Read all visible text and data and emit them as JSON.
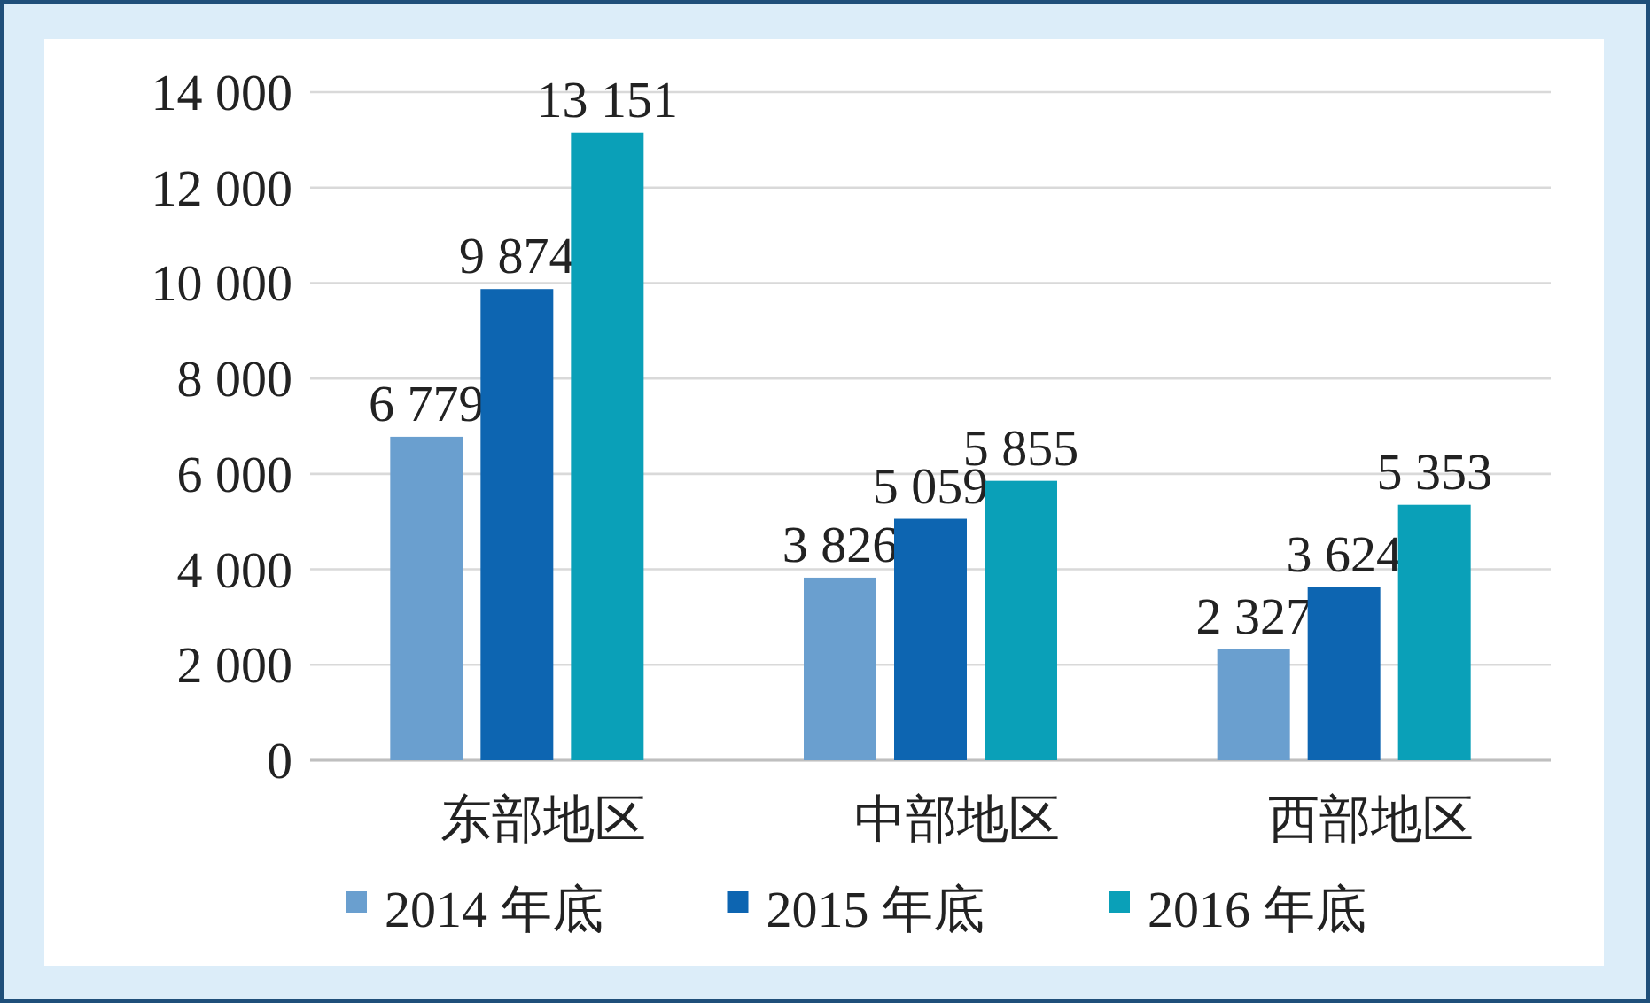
{
  "chart_data": {
    "type": "bar",
    "categories": [
      "东部地区",
      "中部地区",
      "西部地区"
    ],
    "series": [
      {
        "name": "2014 年底",
        "color": "#6a9fcf",
        "values": [
          6779,
          3826,
          2327
        ],
        "value_labels": [
          "6 779",
          "3 826",
          "2 327"
        ]
      },
      {
        "name": "2015 年底",
        "color": "#0d65b1",
        "values": [
          9874,
          5059,
          3624
        ],
        "value_labels": [
          "9 874",
          "5 059",
          "3 624"
        ]
      },
      {
        "name": "2016 年底",
        "color": "#0aa0b8",
        "values": [
          13151,
          5855,
          5353
        ],
        "value_labels": [
          "13 151",
          "5 855",
          "5 353"
        ]
      }
    ],
    "ylim": [
      0,
      14000
    ],
    "yticks": [
      0,
      {
        "value": 2000,
        "label": "2 000"
      },
      {
        "value": 4000,
        "label": "4 000"
      },
      {
        "value": 6000,
        "label": "6 000"
      },
      {
        "value": 8000,
        "label": "8 000"
      },
      {
        "value": 10000,
        "label": "10 000"
      },
      {
        "value": 12000,
        "label": "12 000"
      },
      {
        "value": 14000,
        "label": "14 000"
      }
    ],
    "grid": "y",
    "legend": "bottom"
  }
}
